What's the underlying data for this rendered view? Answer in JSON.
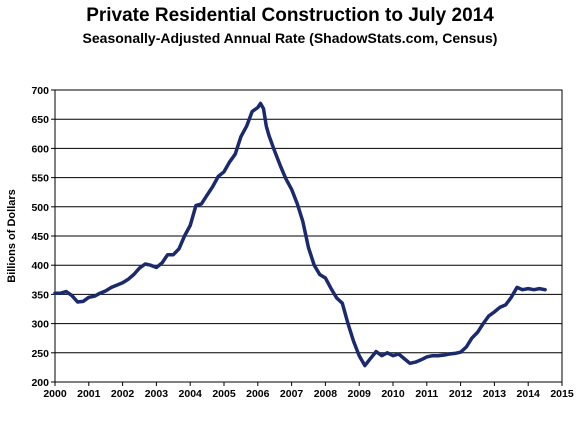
{
  "chart_data": {
    "type": "line",
    "title": "Private Residential Construction to July 2014",
    "subtitle": "Seasonally-Adjusted Annual Rate (ShadowStats.com, Census)",
    "xlabel": "",
    "ylabel": "Billions of Dollars",
    "xlim": [
      2000,
      2015
    ],
    "ylim": [
      200,
      700
    ],
    "x_ticks": [
      "2000",
      "2001",
      "2002",
      "2003",
      "2004",
      "2005",
      "2006",
      "2007",
      "2008",
      "2009",
      "2010",
      "2011",
      "2012",
      "2013",
      "2014",
      "2015"
    ],
    "y_ticks": [
      "700",
      "650",
      "600",
      "550",
      "500",
      "450",
      "400",
      "350",
      "300",
      "250",
      "200"
    ],
    "grid": "horizontal",
    "legend": "none",
    "line_color": "#1a2a6c",
    "series": [
      {
        "x": [
          2000.0,
          2000.17,
          2000.33,
          2000.5,
          2000.67,
          2000.83,
          2001.0,
          2001.17,
          2001.33,
          2001.5,
          2001.67,
          2001.83,
          2002.0,
          2002.17,
          2002.33,
          2002.5,
          2002.67,
          2002.83,
          2003.0,
          2003.17,
          2003.33,
          2003.5,
          2003.67,
          2003.83,
          2004.0,
          2004.17,
          2004.33,
          2004.5,
          2004.67,
          2004.83,
          2005.0,
          2005.17,
          2005.33,
          2005.5,
          2005.67,
          2005.83,
          2006.0,
          2006.08,
          2006.17,
          2006.25,
          2006.33,
          2006.5,
          2006.67,
          2006.83,
          2007.0,
          2007.17,
          2007.33,
          2007.5,
          2007.67,
          2007.83,
          2008.0,
          2008.17,
          2008.33,
          2008.5,
          2008.67,
          2008.83,
          2009.0,
          2009.17,
          2009.33,
          2009.5,
          2009.67,
          2009.83,
          2010.0,
          2010.17,
          2010.33,
          2010.5,
          2010.67,
          2010.83,
          2011.0,
          2011.17,
          2011.33,
          2011.5,
          2011.67,
          2011.83,
          2012.0,
          2012.17,
          2012.33,
          2012.5,
          2012.67,
          2012.83,
          2013.0,
          2013.17,
          2013.33,
          2013.5,
          2013.67,
          2013.83,
          2014.0,
          2014.17,
          2014.33,
          2014.5
        ],
        "values": [
          352,
          352,
          355,
          348,
          337,
          338,
          345,
          347,
          352,
          356,
          362,
          366,
          370,
          376,
          384,
          395,
          402,
          400,
          396,
          404,
          418,
          418,
          428,
          450,
          468,
          502,
          505,
          520,
          535,
          552,
          560,
          577,
          590,
          620,
          638,
          663,
          670,
          677,
          668,
          638,
          622,
          595,
          570,
          548,
          530,
          505,
          475,
          430,
          400,
          384,
          378,
          360,
          344,
          335,
          300,
          270,
          245,
          228,
          240,
          252,
          245,
          250,
          245,
          248,
          240,
          232,
          234,
          238,
          243,
          245,
          245,
          246,
          248,
          249,
          251,
          260,
          275,
          285,
          300,
          313,
          320,
          328,
          332,
          345,
          362,
          358,
          360,
          358,
          360,
          358
        ]
      }
    ]
  }
}
